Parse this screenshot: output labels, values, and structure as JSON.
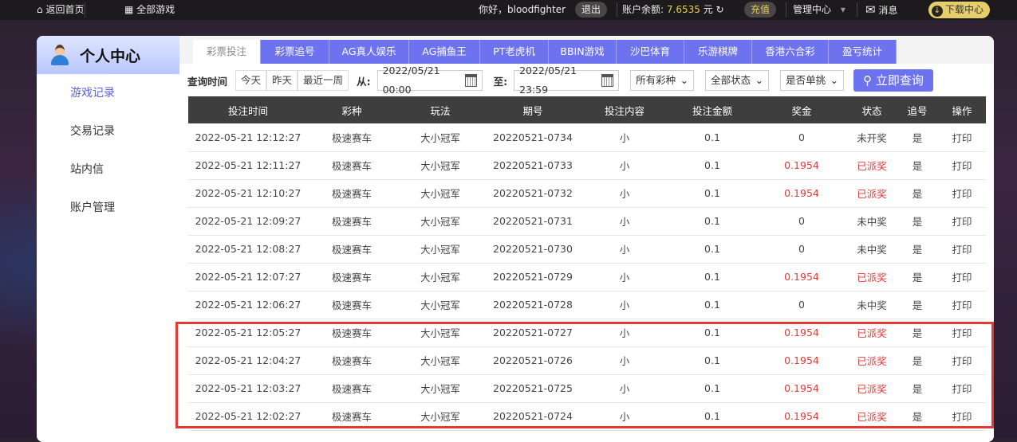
{
  "topbar": {
    "home": "返回首页",
    "all_games": "全部游戏",
    "greeting": "你好，bloodfighter",
    "logout": "退出",
    "balance_label": "账户余额:",
    "balance": "7.6535",
    "currency": "元",
    "recharge": "充值",
    "admin": "管理中心",
    "messages": "消息",
    "download": "下载中心"
  },
  "sidebar": {
    "title": "个人中心",
    "items": [
      {
        "label": "游戏记录",
        "active": true
      },
      {
        "label": "交易记录"
      },
      {
        "label": "站内信"
      },
      {
        "label": "账户管理"
      }
    ]
  },
  "tabs": [
    "彩票投注",
    "彩票追号",
    "AG真人娱乐",
    "AG捕鱼王",
    "PT老虎机",
    "BBIN游戏",
    "沙巴体育",
    "乐游棋牌",
    "香港六合彩",
    "盈亏统计"
  ],
  "filter": {
    "label": "查询时间",
    "quick": [
      "今天",
      "昨天",
      "最近一周"
    ],
    "from_label": "从:",
    "from": "2022/05/21 00:00",
    "to_label": "至:",
    "to": "2022/05/21 23:59",
    "lottery": "所有彩种",
    "status": "全部状态",
    "single": "是否单挑",
    "query": "立即查询"
  },
  "table": {
    "headers": [
      "投注时间",
      "彩种",
      "玩法",
      "期号",
      "投注内容",
      "投注金额",
      "奖金",
      "状态",
      "追号",
      "操作"
    ],
    "rows": [
      [
        "2022-05-21 12:12:27",
        "极速赛车",
        "大小冠军",
        "20220521-0734",
        "小",
        "0.1",
        "0",
        "未开奖",
        "是",
        "打印"
      ],
      [
        "2022-05-21 12:11:27",
        "极速赛车",
        "大小冠军",
        "20220521-0733",
        "小",
        "0.1",
        "0.1954",
        "已派奖",
        "是",
        "打印"
      ],
      [
        "2022-05-21 12:10:27",
        "极速赛车",
        "大小冠军",
        "20220521-0732",
        "小",
        "0.1",
        "0.1954",
        "已派奖",
        "是",
        "打印"
      ],
      [
        "2022-05-21 12:09:27",
        "极速赛车",
        "大小冠军",
        "20220521-0731",
        "小",
        "0.1",
        "0",
        "未中奖",
        "是",
        "打印"
      ],
      [
        "2022-05-21 12:08:27",
        "极速赛车",
        "大小冠军",
        "20220521-0730",
        "小",
        "0.1",
        "0",
        "未中奖",
        "是",
        "打印"
      ],
      [
        "2022-05-21 12:07:27",
        "极速赛车",
        "大小冠军",
        "20220521-0729",
        "小",
        "0.1",
        "0.1954",
        "已派奖",
        "是",
        "打印"
      ],
      [
        "2022-05-21 12:06:27",
        "极速赛车",
        "大小冠军",
        "20220521-0728",
        "小",
        "0.1",
        "0",
        "未中奖",
        "是",
        "打印"
      ],
      [
        "2022-05-21 12:05:27",
        "极速赛车",
        "大小冠军",
        "20220521-0727",
        "小",
        "0.1",
        "0.1954",
        "已派奖",
        "是",
        "打印"
      ],
      [
        "2022-05-21 12:04:27",
        "极速赛车",
        "大小冠军",
        "20220521-0726",
        "小",
        "0.1",
        "0.1954",
        "已派奖",
        "是",
        "打印"
      ],
      [
        "2022-05-21 12:03:27",
        "极速赛车",
        "大小冠军",
        "20220521-0725",
        "小",
        "0.1",
        "0.1954",
        "已派奖",
        "是",
        "打印"
      ],
      [
        "2022-05-21 12:02:27",
        "极速赛车",
        "大小冠军",
        "20220521-0724",
        "小",
        "0.1",
        "0.1954",
        "已派奖",
        "是",
        "打印"
      ]
    ]
  },
  "colors": {
    "accent": "#6d72ee",
    "win": "#e53935",
    "highlight": "#e53935"
  }
}
